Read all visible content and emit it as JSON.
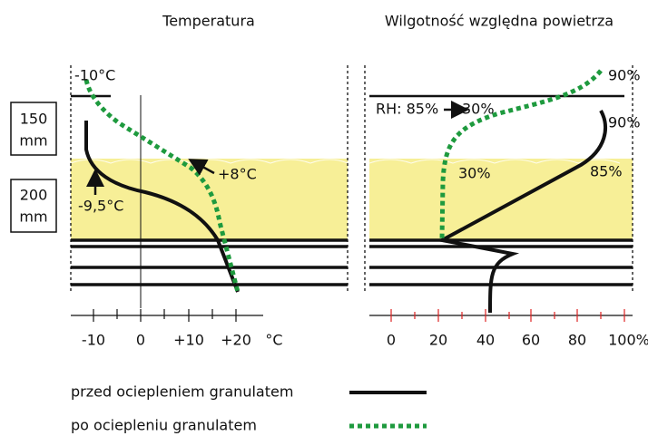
{
  "left_panel": {
    "title": "Temperatura",
    "top_temp": "-10°C",
    "mid_temp": "+8°C",
    "low_temp": "-9,5°C",
    "layer_top": [
      "150",
      "mm"
    ],
    "layer_insulation": [
      "200",
      "mm"
    ],
    "axis_labels": [
      "-10",
      "0",
      "+10",
      "+20",
      "°C"
    ]
  },
  "right_panel": {
    "title": "Wilgotność względna powietrza",
    "top_rh": "90%",
    "rh_change": [
      "RH: 85%",
      "30%"
    ],
    "curve_top": "90%",
    "after_label": "30%",
    "before_label": "85%",
    "axis_labels": [
      "0",
      "20",
      "40",
      "60",
      "80",
      "100%"
    ]
  },
  "legend": {
    "before": "przed ociepleniem granulatem",
    "after": "po ociepleniu granulatem"
  }
}
